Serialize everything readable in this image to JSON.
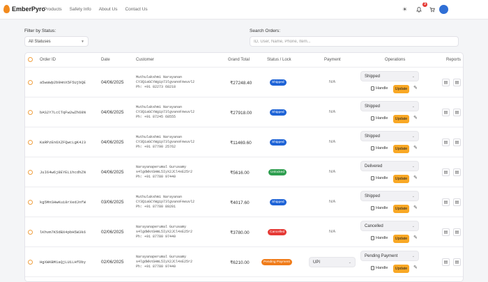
{
  "brand": {
    "name": "EmberPyro"
  },
  "nav": {
    "links": [
      "Products",
      "Safety Info",
      "About Us",
      "Contact Us"
    ]
  },
  "header": {
    "notification_count": "3",
    "icons": [
      "sun-icon",
      "bell-icon",
      "cart-icon",
      "avatar"
    ]
  },
  "filters": {
    "status_label": "Filter by Status:",
    "status_value": "All Statuses",
    "search_label": "Search Orders:",
    "search_placeholder": "ID, User, Name, Phone, Item..."
  },
  "table": {
    "headers": {
      "order_id": "Order ID",
      "date": "Date",
      "customer": "Customer",
      "grand_total": "Grand Total",
      "status": "Status / Lock",
      "payment": "Payment",
      "operations": "Operations",
      "reports": "Reports"
    },
    "handle_label": "Handle",
    "update_label": "Update",
    "rows": [
      {
        "id": "a5waWp2b9HnX5F5UjbQE",
        "date": "04/06/2025",
        "name": "Muthulakshmi Narayanan",
        "uid": "CY3QiaGCYWgip73lgvanoFAeuvl2",
        "phone": "Ph: +91 82273 68218",
        "total": "₹27248.40",
        "status": "Shipped",
        "status_color": "#1e63d6",
        "payment": "N/A",
        "operation": "Shipped"
      },
      {
        "id": "bAS2Y7LcCTqFw2wZh68N",
        "date": "04/06/2025",
        "name": "Muthulakshmi Narayanan",
        "uid": "CY3QiaGCYWgip73lgvanoFAeuvl2",
        "phone": "Ph: +91 87245 68555",
        "total": "₹27918.00",
        "status": "Shipped",
        "status_color": "#1e63d6",
        "payment": "N/A",
        "operation": "Shipped"
      },
      {
        "id": "KaRPzEn6XZFQwcLgK4J3",
        "date": "04/06/2025",
        "name": "Muthulakshmi Narayanan",
        "uid": "CY3QiaGCYWgip73lgvanoFAeuvl2",
        "phone": "Ph: +91 87790 25762",
        "total": "₹11469.60",
        "status": "Shipped",
        "status_color": "#1e63d6",
        "payment": "N/A",
        "operation": "Shipped"
      },
      {
        "id": "JuI64w6j8EYEL1hcdhZN",
        "date": "04/06/2025",
        "name": "Narayanaperumal Gurusamy",
        "uid": "s4lgdWknSHmL5IyX2JCl4xE25r2",
        "phone": "Ph: +91 87780 97440",
        "total": "₹5616.00",
        "status": "Unlocked",
        "status_color": "#2e9e4f",
        "payment": "N/A",
        "operation": "Delivered"
      },
      {
        "id": "kg5MnSHwKui8rXedJnfW",
        "date": "03/06/2025",
        "name": "Muthulakshmi Narayanan",
        "uid": "CY3QiaGCYWgip73lgvanoFAeuvl2",
        "phone": "Ph: +91 87780 89201",
        "total": "₹4017.60",
        "status": "Shipped",
        "status_color": "#1e63d6",
        "payment": "N/A",
        "operation": "Shipped"
      },
      {
        "id": "lKhvm7K5dBX4pbH5W3k6",
        "date": "02/06/2025",
        "name": "Narayanaperumal Gurusamy",
        "uid": "s4lgdWknSHmL5IyX2JCl4xE25r2",
        "phone": "Ph: +91 87780 97440",
        "total": "₹3780.00",
        "status": "Cancelled",
        "status_color": "#e53935",
        "payment": "N/A",
        "operation": "Cancelled"
      },
      {
        "id": "HgXWKBM1aQjLU1LHfDby",
        "date": "02/06/2025",
        "name": "Narayanaperumal Gurusamy",
        "uid": "s4lgdWknSHmL5IyX2JCl4xE25r2",
        "phone": "Ph: +91 87780 97440",
        "total": "₹6210.00",
        "status": "Pending Payment",
        "status_color": "#f07c1a",
        "payment": "UPI",
        "operation": "Pending Payment"
      }
    ]
  }
}
